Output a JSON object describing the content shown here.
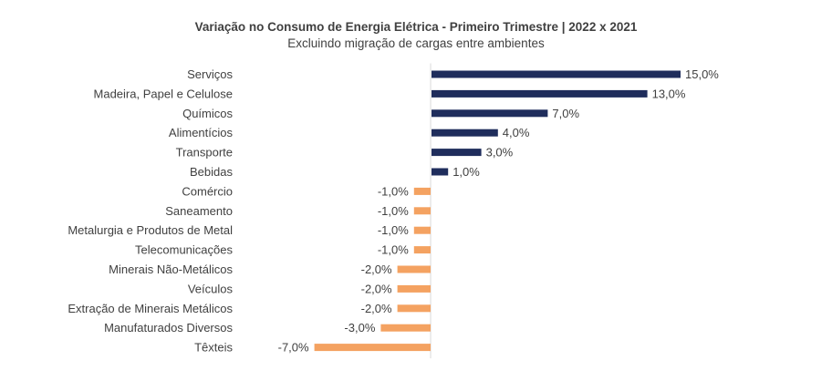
{
  "chart_data": {
    "type": "bar",
    "orientation": "horizontal",
    "title": "Variação no Consumo de Energia Elétrica - Primeiro Trimestre | 2022 x 2021",
    "subtitle": "Excluindo migração de cargas entre ambientes",
    "categories": [
      "Serviços",
      "Madeira, Papel e Celulose",
      "Químicos",
      "Alimentícios",
      "Transporte",
      "Bebidas",
      "Comércio",
      "Saneamento",
      "Metalurgia e Produtos de Metal",
      "Telecomunicações",
      "Minerais Não-Metálicos",
      "Veículos",
      "Extração de Minerais Metálicos",
      "Manufaturados Diversos",
      "Têxteis"
    ],
    "values": [
      15,
      13,
      7,
      4,
      3,
      1,
      -1,
      -1,
      -1,
      -1,
      -2,
      -2,
      -2,
      -3,
      -7
    ],
    "data_labels": [
      "15,0%",
      "13,0%",
      "7,0%",
      "4,0%",
      "3,0%",
      "1,0%",
      "-1,0%",
      "-1,0%",
      "-1,0%",
      "-1,0%",
      "-2,0%",
      "-2,0%",
      "-2,0%",
      "-3,0%",
      "-7,0%"
    ],
    "unit": "%",
    "xlim": [
      -7,
      15
    ],
    "grid": false,
    "legend": "none",
    "colors": {
      "positive": "#1f2d5c",
      "negative": "#f4a261",
      "axis": "#d9d9d9"
    }
  }
}
